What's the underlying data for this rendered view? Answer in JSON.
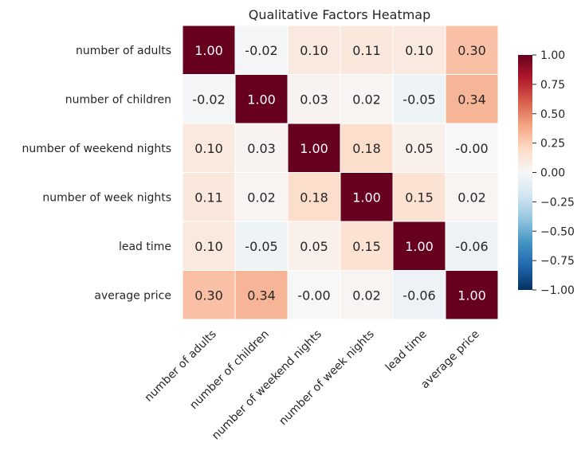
{
  "chart_data": {
    "type": "heatmap",
    "title": "Qualitative Factors Heatmap",
    "xlabel": "",
    "ylabel": "",
    "row_labels": [
      "number of adults",
      "number of children",
      "number of weekend nights",
      "number of week nights",
      "lead time",
      "average price"
    ],
    "col_labels": [
      "number of adults",
      "number of children",
      "number of weekend nights",
      "number of week nights",
      "lead time",
      "average price"
    ],
    "values": [
      [
        1.0,
        -0.02,
        0.1,
        0.11,
        0.1,
        0.3
      ],
      [
        -0.02,
        1.0,
        0.03,
        0.02,
        -0.05,
        0.34
      ],
      [
        0.1,
        0.03,
        1.0,
        0.18,
        0.05,
        -0.0
      ],
      [
        0.11,
        0.02,
        0.18,
        1.0,
        0.15,
        0.02
      ],
      [
        0.1,
        -0.05,
        0.05,
        0.15,
        1.0,
        -0.06
      ],
      [
        0.3,
        0.34,
        -0.0,
        0.02,
        -0.06,
        1.0
      ]
    ],
    "cell_text": [
      [
        "1.00",
        "-0.02",
        "0.10",
        "0.11",
        "0.10",
        "0.30"
      ],
      [
        "-0.02",
        "1.00",
        "0.03",
        "0.02",
        "-0.05",
        "0.34"
      ],
      [
        "0.10",
        "0.03",
        "1.00",
        "0.18",
        "0.05",
        "-0.00"
      ],
      [
        "0.11",
        "0.02",
        "0.18",
        "1.00",
        "0.15",
        "0.02"
      ],
      [
        "0.10",
        "-0.05",
        "0.05",
        "0.15",
        "1.00",
        "-0.06"
      ],
      [
        "0.30",
        "0.34",
        "-0.00",
        "0.02",
        "-0.06",
        "1.00"
      ]
    ],
    "colormap": "RdBu_r",
    "vmin": -1.0,
    "vmax": 1.0,
    "colorbar_ticks": [
      1.0,
      0.75,
      0.5,
      0.25,
      0.0,
      -0.25,
      -0.5,
      -0.75,
      -1.0
    ],
    "colorbar_tick_labels": [
      "1.00",
      "0.75",
      "0.50",
      "0.25",
      "0.00",
      "−0.25",
      "−0.50",
      "−0.75",
      "−1.00"
    ],
    "grid": false,
    "legend": "colorbar-right"
  }
}
